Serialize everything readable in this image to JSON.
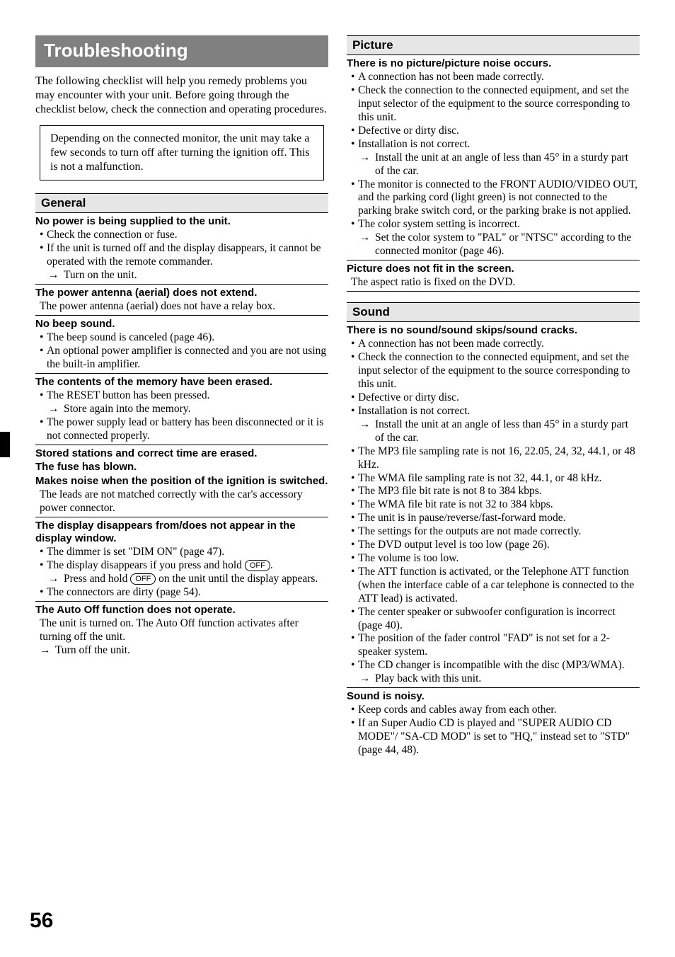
{
  "page_number": "56",
  "title": "Troubleshooting",
  "intro": "The following checklist will help you remedy problems you may encounter with your unit. Before going through the checklist below, check the connection and operating procedures.",
  "note": "Depending on the connected monitor, the unit may take a few seconds to turn off after turning the ignition off. This is not a malfunction.",
  "oval_off": "OFF",
  "left": {
    "general_head": "General",
    "i1": {
      "t": "No power is being supplied to the unit.",
      "b1": "Check the connection or fuse.",
      "b2": "If the unit is turned off and the display disappears, it cannot be operated with the remote commander.",
      "a1": "Turn on the unit."
    },
    "i2": {
      "t": "The power antenna (aerial) does not extend.",
      "p": "The power antenna (aerial) does not have a relay box."
    },
    "i3": {
      "t": "No beep sound.",
      "b1": "The beep sound is canceled (page 46).",
      "b2": "An optional power amplifier is connected and you are not using the built-in amplifier."
    },
    "i4": {
      "t": "The contents of the memory have been erased.",
      "b1": "The RESET button has been pressed.",
      "a1": "Store again into the memory.",
      "b2": "The power supply lead or battery has been disconnected or it is not connected properly."
    },
    "i5": {
      "t1": "Stored stations and correct time are erased.",
      "t2": "The fuse has blown.",
      "t3": "Makes noise when the position of the ignition is switched.",
      "p": "The leads are not matched correctly with the car's accessory power connector."
    },
    "i6": {
      "t": "The display disappears from/does not appear in the display window.",
      "b1": "The dimmer is set \"DIM ON\" (page 47).",
      "b2a": "The display disappears if you press and hold ",
      "b2b": ".",
      "a1a": "Press and hold ",
      "a1b": " on the unit until the display appears.",
      "b3": "The connectors are dirty (page 54)."
    },
    "i7": {
      "t": "The Auto Off function does not operate.",
      "p": "The unit is turned on. The Auto Off function activates after turning off the unit.",
      "a1": "Turn off the unit."
    }
  },
  "right": {
    "picture_head": "Picture",
    "p1": {
      "t": "There is no picture/picture noise occurs.",
      "b1": "A connection has not been made correctly.",
      "b2": "Check the connection to the connected equipment, and set the input selector of the equipment to the source corresponding to this unit.",
      "b3": "Defective or dirty disc.",
      "b4": "Installation is not correct.",
      "a4": "Install the unit at an angle of less than 45° in a sturdy part of the car.",
      "b5": "The monitor is connected to the FRONT AUDIO/VIDEO OUT, and the parking cord (light green) is not connected to the parking brake switch cord, or the parking brake is not applied.",
      "b6": "The color system setting is incorrect.",
      "a6": "Set the color system to \"PAL\" or \"NTSC\" according to the connected monitor (page 46)."
    },
    "p2": {
      "t": "Picture does not fit in the screen.",
      "p": "The aspect ratio is fixed on the DVD."
    },
    "sound_head": "Sound",
    "s1": {
      "t": "There is no sound/sound skips/sound cracks.",
      "b1": "A connection has not been made correctly.",
      "b2": "Check the connection to the connected equipment, and set the input selector of the equipment to the source corresponding to this unit.",
      "b3": "Defective or dirty disc.",
      "b4": "Installation is not correct.",
      "a4": "Install the unit at an angle of less than 45° in a sturdy part of the car.",
      "b5": "The MP3 file sampling rate is not 16, 22.05, 24, 32, 44.1, or 48 kHz.",
      "b6": "The WMA file sampling rate is not 32, 44.1, or 48 kHz.",
      "b7": "The MP3 file bit rate is not 8 to 384 kbps.",
      "b8": "The WMA file bit rate is not 32 to 384 kbps.",
      "b9": "The unit is in pause/reverse/fast-forward mode.",
      "b10": "The settings for the outputs are not made correctly.",
      "b11": "The DVD output level is too low (page 26).",
      "b12": "The volume is too low.",
      "b13": "The ATT function is activated, or the Telephone ATT function (when the interface cable of a car telephone is connected to the ATT lead) is activated.",
      "b14": "The center speaker or subwoofer configuration is incorrect (page 40).",
      "b15": "The position of the fader control \"FAD\" is not set for a 2-speaker system.",
      "b16": "The CD changer is incompatible with the disc (MP3/WMA).",
      "a16": "Play back with this unit."
    },
    "s2": {
      "t": "Sound is noisy.",
      "b1": "Keep cords and cables away from each other.",
      "b2": "If an Super Audio CD is played and \"SUPER AUDIO CD MODE\"/ \"SA-CD MOD\" is set to \"HQ,\" instead set to \"STD\" (page 44, 48)."
    }
  }
}
